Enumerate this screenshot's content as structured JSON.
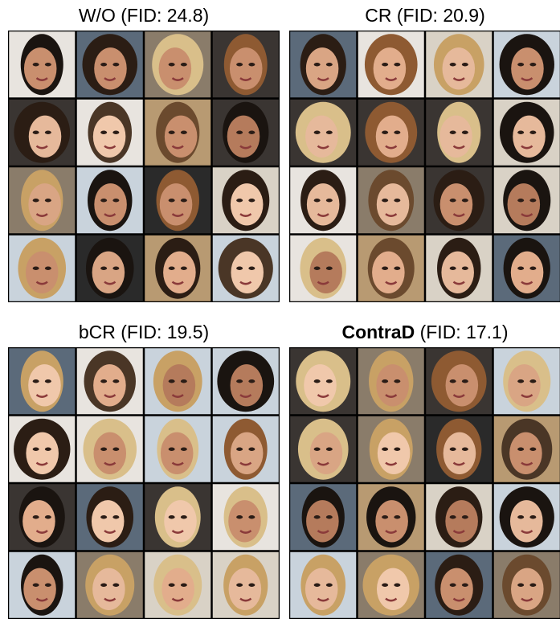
{
  "panels": [
    {
      "name": "W/O",
      "score": "(FID: 24.8)",
      "bold": false
    },
    {
      "name": "CR",
      "score": "(FID: 20.9)",
      "bold": false
    },
    {
      "name": "bCR",
      "score": "(FID: 19.5)",
      "bold": false
    },
    {
      "name": "ContraD",
      "score": "(FID: 17.1)",
      "bold": true
    }
  ]
}
